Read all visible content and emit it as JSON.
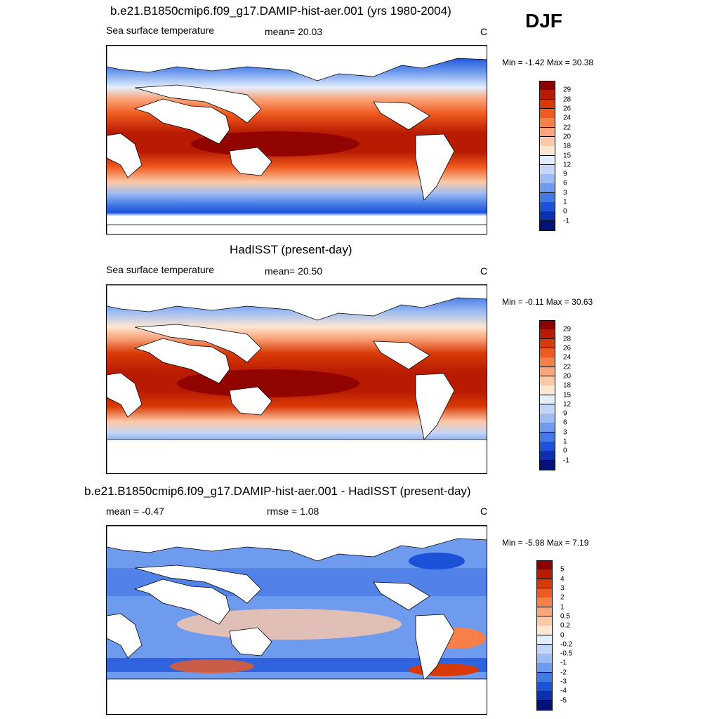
{
  "season": "DJF",
  "panels": [
    {
      "id": "model",
      "title": "b.e21.B1850cmip6.f09_g17.DAMIP-hist-aer.001 (yrs 1980-2004)",
      "left_label": "Sea surface temperature",
      "mid_label": "mean=  20.03",
      "unit": "C",
      "minmax": "Min =  -1.42 Max =  30.38"
    },
    {
      "id": "obs",
      "title": "HadISST (present-day)",
      "left_label": "Sea surface temperature",
      "mid_label": "mean=  20.50",
      "unit": "C",
      "minmax": "Min =  -0.11 Max =  30.63"
    },
    {
      "id": "diff",
      "title": "b.e21.B1850cmip6.f09_g17.DAMIP-hist-aer.001 - HadISST (present-day)",
      "left_label": "mean =  -0.47",
      "mid_label": "rmse =   1.08",
      "unit": "C",
      "minmax": "Min =  -5.98 Max =   7.19"
    }
  ],
  "colorbars": {
    "sst": {
      "labels": [
        "29",
        "28",
        "26",
        "24",
        "22",
        "20",
        "18",
        "15",
        "12",
        "9",
        "6",
        "3",
        "1",
        "0",
        "-1"
      ],
      "colors": [
        "#8b0000",
        "#b81b02",
        "#d93a05",
        "#ef5a1f",
        "#f7804a",
        "#faa57c",
        "#fcc9a8",
        "#fde6d2",
        "#e4eefb",
        "#c3d6f7",
        "#9cbcf3",
        "#6f9bee",
        "#4478e6",
        "#1b52d9",
        "#0a2fb0",
        "#03117a"
      ]
    },
    "diff": {
      "labels": [
        "5",
        "4",
        "3",
        "2",
        "1",
        "0.5",
        "0.2",
        "0",
        "-0.2",
        "-0.5",
        "-1",
        "-2",
        "-3",
        "-4",
        "-5"
      ],
      "colors": [
        "#8b0000",
        "#b81b02",
        "#d93a05",
        "#ef5a1f",
        "#f7804a",
        "#faa57c",
        "#fcc9a8",
        "#fde6d2",
        "#e4eefb",
        "#c3d6f7",
        "#9cbcf3",
        "#6f9bee",
        "#4478e6",
        "#1b52d9",
        "#0a2fb0",
        "#03117a"
      ]
    }
  }
}
